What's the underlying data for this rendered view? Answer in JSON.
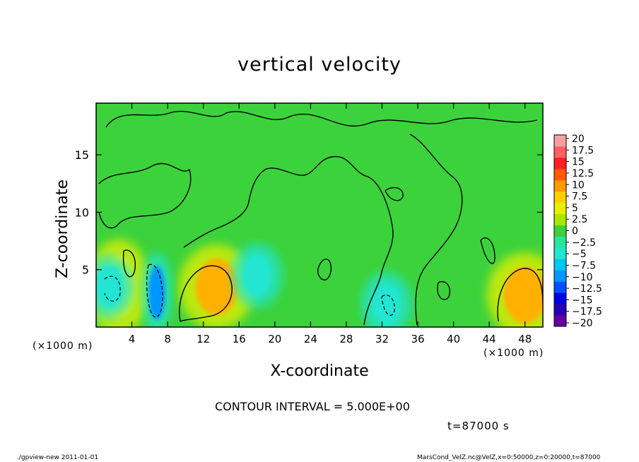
{
  "chart_data": {
    "type": "heatmap",
    "title": "vertical velocity",
    "xlabel": "X-coordinate",
    "ylabel": "Z-coordinate",
    "x_unit_left": "(×1000 m)",
    "x_unit_right": "(×1000 m)",
    "xlim": [
      0,
      50
    ],
    "ylim": [
      0,
      19.5
    ],
    "x_ticks": [
      "4",
      "8",
      "12",
      "16",
      "20",
      "24",
      "28",
      "32",
      "36",
      "40",
      "44",
      "48"
    ],
    "x_tick_values": [
      4,
      8,
      12,
      16,
      20,
      24,
      28,
      32,
      36,
      40,
      44,
      48
    ],
    "y_ticks": [
      "5",
      "10",
      "15"
    ],
    "y_tick_values": [
      5,
      10,
      15
    ],
    "colorbar": {
      "labels": [
        "20",
        "17.5",
        "15",
        "12.5",
        "10",
        "7.5",
        "5",
        "2.5",
        "0",
        "−2.5",
        "−5",
        "−7.5",
        "−10",
        "−12.5",
        "−15",
        "−17.5",
        "−20"
      ],
      "colors": [
        "#f4a0a0",
        "#ff6060",
        "#ff2020",
        "#ff5a00",
        "#ff9a00",
        "#ffd000",
        "#e8f000",
        "#a8e800",
        "#3cd23c",
        "#28e696",
        "#20e6d2",
        "#00c8f0",
        "#0096ff",
        "#0050ff",
        "#0000e6",
        "#2800b4",
        "#6400a0"
      ]
    },
    "features": [
      {
        "name": "updraft",
        "x": 13.5,
        "z": 3.5,
        "value": 7.5
      },
      {
        "name": "updraft",
        "x": 48,
        "z": 2.8,
        "value": 7.5
      },
      {
        "name": "updraft",
        "x": 2.5,
        "z": 3.5,
        "value": 2.5
      },
      {
        "name": "downdraft",
        "x": 6.8,
        "z": 3.0,
        "value": -7.5
      },
      {
        "name": "downdraft",
        "x": 1.5,
        "z": 3.5,
        "value": -5
      },
      {
        "name": "downdraft",
        "x": 32.5,
        "z": 2.0,
        "value": -5
      },
      {
        "name": "downdraft",
        "x": 18,
        "z": 4.5,
        "value": -5
      }
    ],
    "contour_interval_text": "CONTOUR INTERVAL = 5.000E+00",
    "time_text": "t=87000 s"
  },
  "footer": {
    "left": "./gpview-new   2011-01-01",
    "right": "MarsCond_VelZ.nc@VelZ,x=0:50000,z=0:20000,t=87000"
  },
  "colors": {
    "background": "#3cd23c",
    "positive": "#e8f000",
    "strong_positive": "#ffb000",
    "negative": "#20e6d2",
    "strong_negative": "#0096ff"
  }
}
